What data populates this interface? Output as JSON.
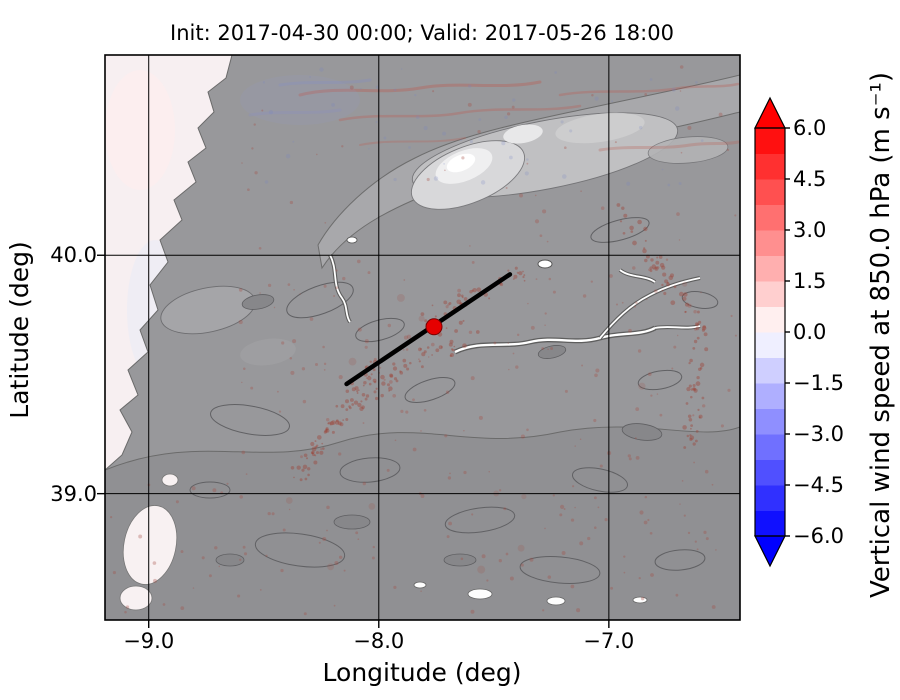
{
  "chart_data": {
    "type": "heatmap",
    "title": "Init: 2017-04-30 00:00; Valid: 2017-05-26 18:00",
    "xlabel": "Longitude (deg)",
    "ylabel": "Latitude (deg)",
    "xlim": [
      -9.19,
      -6.43
    ],
    "ylim": [
      38.47,
      40.84
    ],
    "xticks": [
      -9.0,
      -8.0,
      -7.0
    ],
    "xtick_labels": [
      "−9.0",
      "−8.0",
      "−7.0"
    ],
    "yticks": [
      40.0,
      39.0
    ],
    "ytick_labels": [
      "40.0",
      "39.0"
    ],
    "grid": true,
    "colorbar": {
      "label": "Vertical wind speed at 850.0 hPa (m s⁻¹)",
      "ticks": [
        6.0,
        4.5,
        3.0,
        1.5,
        0.0,
        -1.5,
        -3.0,
        -4.5,
        -6.0
      ],
      "tick_labels": [
        "6.0",
        "4.5",
        "3.0",
        "1.5",
        "0.0",
        "−1.5",
        "−3.0",
        "−4.5",
        "−6.0"
      ],
      "vmin": -6.0,
      "vmax": 6.0,
      "extend": "both",
      "band_colors": [
        "#1010ff",
        "#3030ff",
        "#5050ff",
        "#7070ff",
        "#8f8fff",
        "#afafff",
        "#cfcfff",
        "#efefff",
        "#ffefef",
        "#ffcfcf",
        "#ffafaf",
        "#ff8f8f",
        "#ff7070",
        "#ff5050",
        "#ff3030",
        "#ff1010"
      ],
      "arrow_top_color": "#ff0000",
      "arrow_bottom_color": "#0000ff"
    },
    "overlays": {
      "cross_section_line": {
        "lon_from": -8.14,
        "lat_from": 39.46,
        "lon_to": -7.43,
        "lat_to": 39.92,
        "color": "#000000"
      },
      "marker": {
        "lon": -7.76,
        "lat": 39.7,
        "color": "#e50000"
      }
    },
    "colors": {
      "land_gray": "#98989b",
      "ocean_tint": "#f7eff1",
      "grid": "#000000"
    }
  }
}
